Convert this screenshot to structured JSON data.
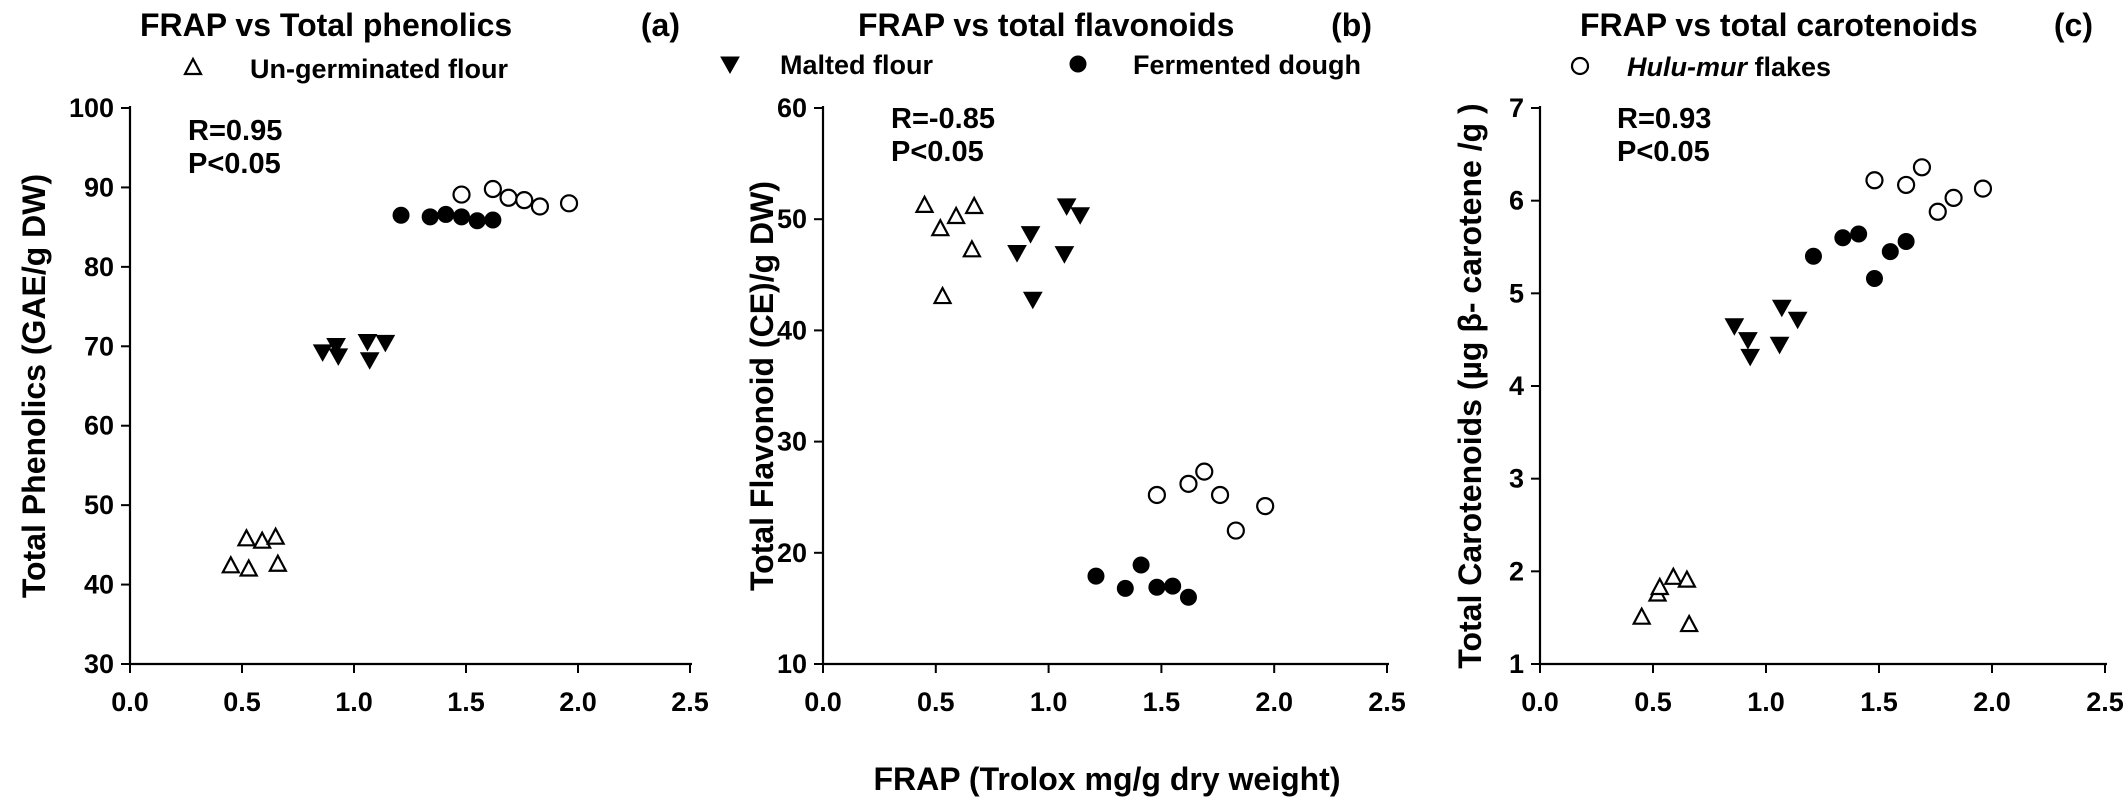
{
  "figure": {
    "shared_xlabel": "FRAP (Trolox mg/g dry weight)"
  },
  "legend": [
    {
      "series": "ungerminated",
      "label_parts": [
        {
          "text": "Un-germinated flour",
          "italic": false
        }
      ]
    },
    {
      "series": "malted",
      "label_parts": [
        {
          "text": "Malted flour",
          "italic": false
        }
      ]
    },
    {
      "series": "fermented",
      "label_parts": [
        {
          "text": "Fermented dough",
          "italic": false
        }
      ]
    },
    {
      "series": "hulumur",
      "label_parts": [
        {
          "text": "Hulu-mur",
          "italic": true
        },
        {
          "text": " flakes",
          "italic": false
        }
      ]
    }
  ],
  "markers": {
    "ungerminated": "open-triangle-up",
    "malted": "filled-triangle-down",
    "fermented": "filled-circle",
    "hulumur": "open-circle"
  },
  "chart_data": [
    {
      "type": "scatter",
      "title": "FRAP vs Total phenolics",
      "panel_label": "(a)",
      "xlabel": "",
      "ylabel": "Total Phenolics (GAE/g DW)",
      "xlim": [
        0.0,
        2.5
      ],
      "ylim": [
        30,
        100
      ],
      "xticks": [
        "0.0",
        "0.5",
        "1.0",
        "1.5",
        "2.0",
        "2.5"
      ],
      "yticks": [
        "30",
        "40",
        "50",
        "60",
        "70",
        "80",
        "90",
        "100"
      ],
      "stats": [
        "R=0.95",
        "P<0.05"
      ],
      "grid": false,
      "series": [
        {
          "key": "ungerminated",
          "x": [
            0.45,
            0.52,
            0.53,
            0.59,
            0.65,
            0.66
          ],
          "y": [
            42.3,
            45.7,
            41.9,
            45.4,
            45.9,
            42.5
          ]
        },
        {
          "key": "malted",
          "x": [
            0.86,
            0.92,
            0.93,
            1.06,
            1.07,
            1.14
          ],
          "y": [
            69.3,
            70.1,
            68.8,
            70.6,
            68.3,
            70.5
          ]
        },
        {
          "key": "fermented",
          "x": [
            1.21,
            1.34,
            1.41,
            1.48,
            1.55,
            1.62
          ],
          "y": [
            86.5,
            86.3,
            86.6,
            86.3,
            85.8,
            85.9
          ]
        },
        {
          "key": "hulumur",
          "x": [
            1.48,
            1.62,
            1.69,
            1.76,
            1.83,
            1.96
          ],
          "y": [
            89.1,
            89.8,
            88.7,
            88.4,
            87.6,
            88.0
          ]
        }
      ]
    },
    {
      "type": "scatter",
      "title": "FRAP vs total flavonoids",
      "panel_label": "(b)",
      "xlabel": "",
      "ylabel": "Total Flavonoid (CE)/g DW)",
      "xlim": [
        0.0,
        2.5
      ],
      "ylim": [
        10,
        60
      ],
      "xticks": [
        "0.0",
        "0.5",
        "1.0",
        "1.5",
        "2.0",
        "2.5"
      ],
      "yticks": [
        "10",
        "20",
        "30",
        "40",
        "50",
        "60"
      ],
      "stats": [
        "R=-0.85",
        "P<0.05"
      ],
      "grid": false,
      "series": [
        {
          "key": "ungerminated",
          "x": [
            0.45,
            0.52,
            0.53,
            0.59,
            0.66,
            0.67
          ],
          "y": [
            51.2,
            49.1,
            43.0,
            50.2,
            47.2,
            51.1
          ]
        },
        {
          "key": "malted",
          "x": [
            0.86,
            0.92,
            0.93,
            1.07,
            1.08,
            1.14
          ],
          "y": [
            47.0,
            48.7,
            42.8,
            46.9,
            51.2,
            50.4
          ]
        },
        {
          "key": "fermented",
          "x": [
            1.21,
            1.34,
            1.41,
            1.48,
            1.55,
            1.62
          ],
          "y": [
            17.9,
            16.8,
            18.9,
            16.9,
            17.0,
            16.0
          ]
        },
        {
          "key": "hulumur",
          "x": [
            1.48,
            1.62,
            1.69,
            1.76,
            1.83,
            1.96
          ],
          "y": [
            25.2,
            26.2,
            27.3,
            25.2,
            22.0,
            24.2
          ]
        }
      ]
    },
    {
      "type": "scatter",
      "title": "FRAP vs total carotenoids",
      "panel_label": "(c)",
      "xlabel": "",
      "ylabel": "Total Carotenoids (µg β- carotene /g )",
      "xlim": [
        0.0,
        2.5
      ],
      "ylim": [
        1,
        7
      ],
      "xticks": [
        "0.0",
        "0.5",
        "1.0",
        "1.5",
        "2.0",
        "2.5"
      ],
      "yticks": [
        "1",
        "2",
        "3",
        "4",
        "5",
        "6",
        "7"
      ],
      "stats": [
        "R=0.93",
        "P<0.05"
      ],
      "grid": false,
      "series": [
        {
          "key": "ungerminated",
          "x": [
            0.45,
            0.52,
            0.53,
            0.59,
            0.65,
            0.66
          ],
          "y": [
            1.5,
            1.75,
            1.82,
            1.93,
            1.9,
            1.42
          ]
        },
        {
          "key": "malted",
          "x": [
            0.86,
            0.92,
            0.93,
            1.06,
            1.07,
            1.14
          ],
          "y": [
            4.65,
            4.5,
            4.32,
            4.45,
            4.85,
            4.72
          ]
        },
        {
          "key": "fermented",
          "x": [
            1.21,
            1.34,
            1.41,
            1.48,
            1.55,
            1.62
          ],
          "y": [
            5.4,
            5.6,
            5.64,
            5.16,
            5.45,
            5.56
          ]
        },
        {
          "key": "hulumur",
          "x": [
            1.48,
            1.62,
            1.69,
            1.76,
            1.83,
            1.96
          ],
          "y": [
            6.22,
            6.17,
            6.36,
            5.88,
            6.03,
            6.13
          ]
        }
      ]
    }
  ]
}
